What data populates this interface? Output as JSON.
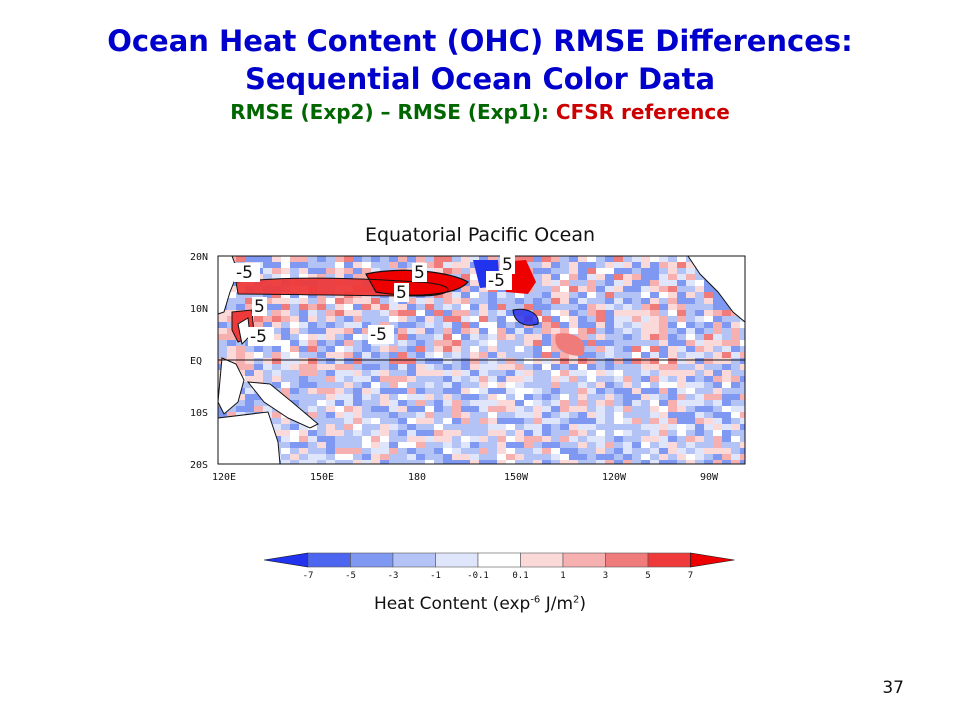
{
  "slide": {
    "title_line1": "Ocean Heat Content (OHC) RMSE Differences:",
    "title_line2": "Sequential Ocean Color Data",
    "subtitle_green": "RMSE (Exp2) – RMSE (Exp1):",
    "subtitle_red": "CFSR reference",
    "page_number": "37"
  },
  "map": {
    "title": "Equatorial Pacific Ocean",
    "lat_labels": [
      "20N",
      "10N",
      "EQ",
      "10S",
      "20S"
    ],
    "lon_labels": [
      "120E",
      "150E",
      "180",
      "150W",
      "120W",
      "90W"
    ],
    "contour_labels": [
      "-5",
      "5",
      "5",
      "-5",
      "5",
      "-5",
      "-5",
      "5"
    ]
  },
  "colorbar": {
    "ticks": [
      "-7",
      "-5",
      "-3",
      "-1",
      "-0.1",
      "0.1",
      "1",
      "3",
      "5",
      "7"
    ],
    "colors": [
      "#2233ee",
      "#4d66f0",
      "#7f99f2",
      "#b3c3f6",
      "#dfe5fb",
      "#ffffff",
      "#fbd9d9",
      "#f6b0b0",
      "#f07b7b",
      "#ee3a3a",
      "#ee0000"
    ],
    "label_prefix": "Heat Content (exp",
    "label_exp": "-6",
    "label_mid": " J/m",
    "label_exp2": "2",
    "label_suffix": ")"
  },
  "colors": {
    "title_blue": "#0000cc",
    "subtitle_green": "#006600",
    "subtitle_red": "#cc0000"
  }
}
